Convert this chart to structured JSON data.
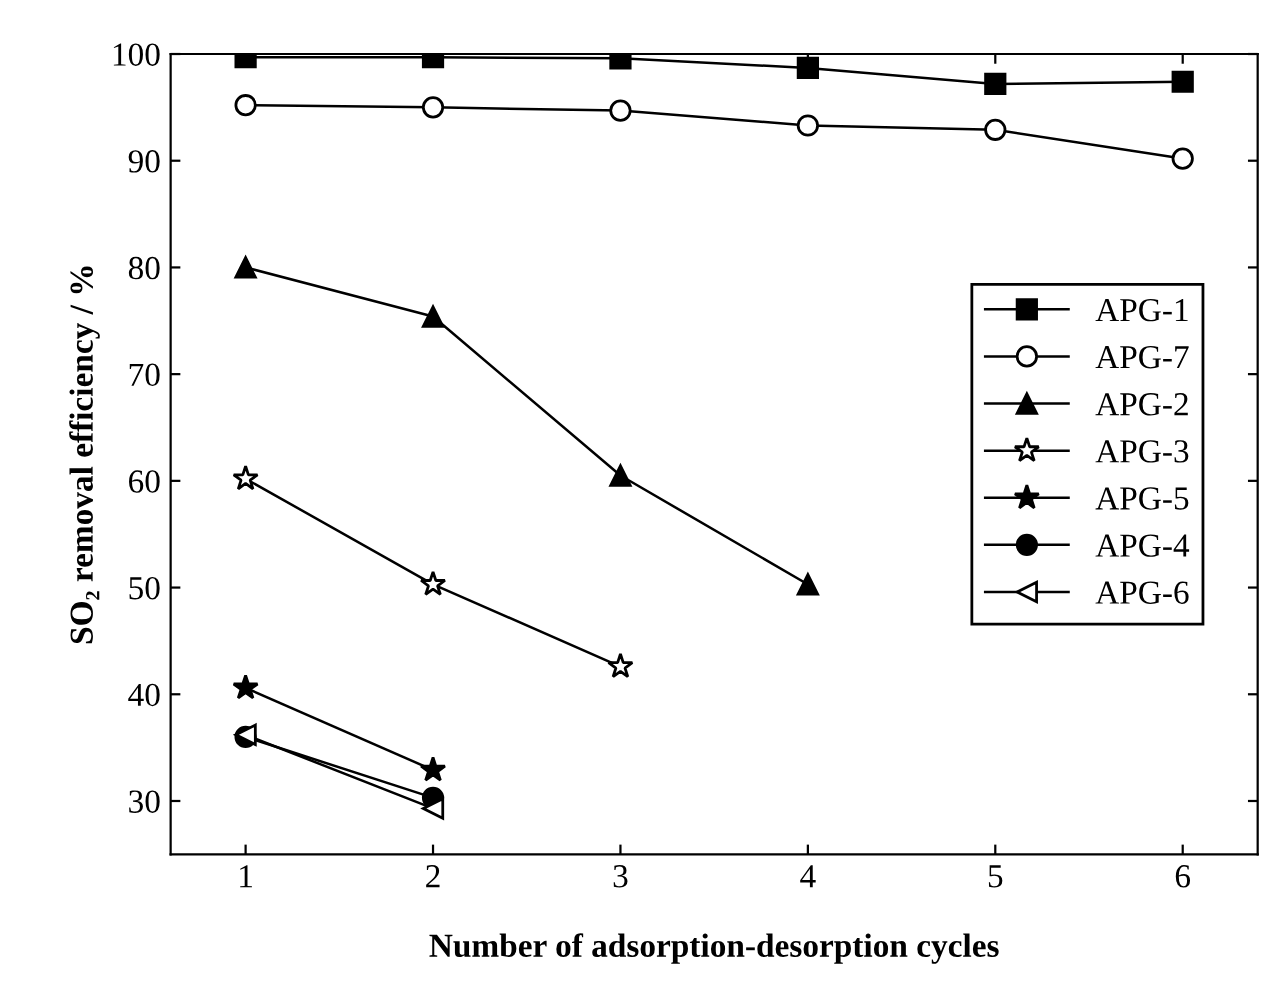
{
  "chart_data": {
    "type": "line",
    "xlabel": "Number of adsorption-desorption cycles",
    "ylabel": "SO₂ removal efficiency / %",
    "xlim": [
      0.6,
      6.4
    ],
    "xticks": [
      1,
      2,
      3,
      4,
      5,
      6
    ],
    "ylim": [
      25,
      100
    ],
    "yticks": [
      30,
      40,
      50,
      60,
      70,
      80,
      90,
      100
    ],
    "grid": false,
    "legend": "right",
    "line_style": "solid",
    "series": [
      {
        "name": "APG-1",
        "color": "#000000",
        "marker": "square",
        "x": [
          1,
          2,
          3,
          4,
          5,
          6
        ],
        "values": [
          99.7,
          99.7,
          99.6,
          98.7,
          97.2,
          97.4
        ]
      },
      {
        "name": "APG-7",
        "color": "#000000",
        "marker": "circle-open",
        "x": [
          1,
          2,
          3,
          4,
          5,
          6
        ],
        "values": [
          95.2,
          95.0,
          94.7,
          93.3,
          92.9,
          90.2
        ]
      },
      {
        "name": "APG-2",
        "color": "#000000",
        "marker": "triangle",
        "x": [
          1,
          2,
          3,
          4
        ],
        "values": [
          80.0,
          75.4,
          60.5,
          50.3
        ]
      },
      {
        "name": "APG-3",
        "color": "#000000",
        "marker": "star-open",
        "x": [
          1,
          2,
          3
        ],
        "values": [
          60.2,
          50.3,
          42.6
        ]
      },
      {
        "name": "APG-5",
        "color": "#000000",
        "marker": "star",
        "x": [
          1,
          2
        ],
        "values": [
          40.6,
          32.9
        ]
      },
      {
        "name": "APG-4",
        "color": "#000000",
        "marker": "circle",
        "x": [
          1,
          2
        ],
        "values": [
          36.0,
          30.3
        ]
      },
      {
        "name": "APG-6",
        "color": "#000000",
        "marker": "triangle-left-open",
        "x": [
          1,
          2
        ],
        "values": [
          36.2,
          29.3
        ]
      }
    ]
  }
}
